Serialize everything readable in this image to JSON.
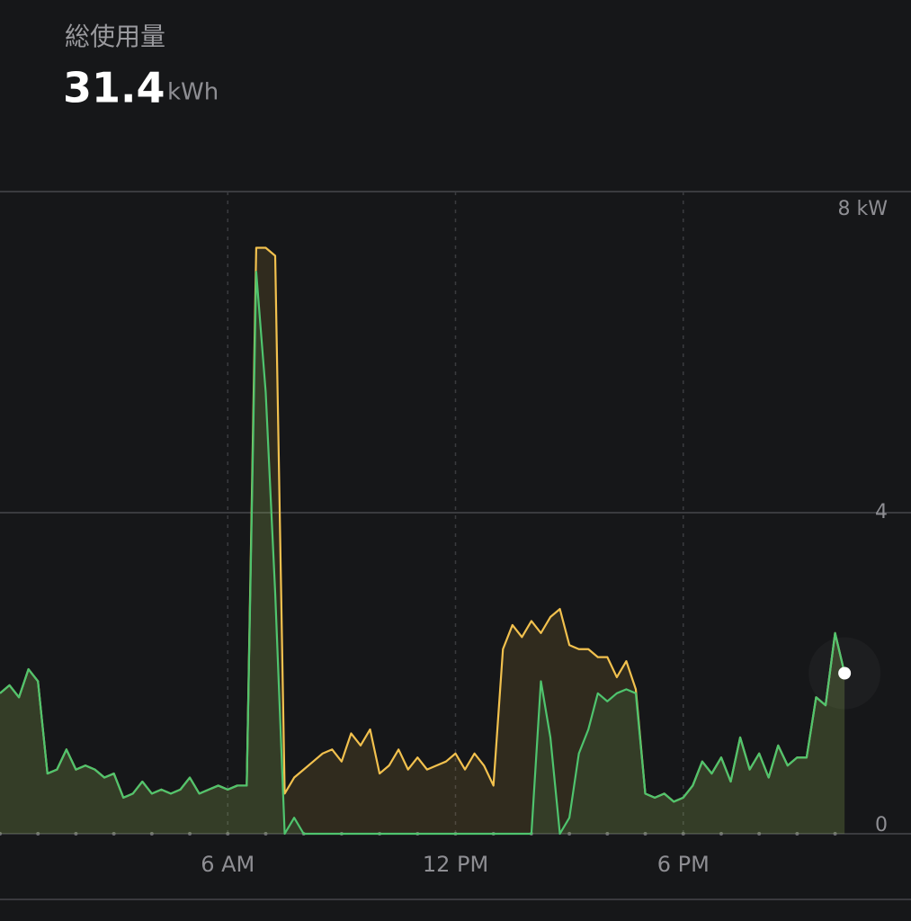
{
  "header": {
    "title": "総使用量",
    "total": "31.4",
    "unit": "kWh"
  },
  "chart_data": {
    "type": "area",
    "x": [
      0,
      0.25,
      0.5,
      0.75,
      1,
      1.25,
      1.5,
      1.75,
      2,
      2.25,
      2.5,
      2.75,
      3,
      3.25,
      3.5,
      3.75,
      4,
      4.25,
      4.5,
      4.75,
      5,
      5.25,
      5.5,
      5.75,
      6,
      6.25,
      6.5,
      6.75,
      7,
      7.25,
      7.5,
      7.75,
      8,
      8.25,
      8.5,
      8.75,
      9,
      9.25,
      9.5,
      9.75,
      10,
      10.25,
      10.5,
      10.75,
      11,
      11.25,
      11.5,
      11.75,
      12,
      12.25,
      12.5,
      12.75,
      13,
      13.25,
      13.5,
      13.75,
      14,
      14.25,
      14.5,
      14.75,
      15,
      15.25,
      15.5,
      15.75,
      16,
      16.25,
      16.5,
      16.75,
      17,
      17.25,
      17.5,
      17.75,
      18,
      18.25,
      18.5,
      18.75,
      19,
      19.25,
      19.5,
      19.75,
      20,
      20.25,
      20.5,
      20.75,
      21,
      21.25,
      21.5,
      21.75,
      22,
      22.25
    ],
    "series": [
      {
        "color": "#f2c14e",
        "values": [
          1.75,
          1.85,
          1.7,
          2.05,
          1.9,
          0.75,
          0.8,
          1.05,
          0.8,
          0.85,
          0.8,
          0.7,
          0.75,
          0.45,
          0.5,
          0.65,
          0.5,
          0.55,
          0.5,
          0.55,
          0.7,
          0.5,
          0.55,
          0.6,
          0.55,
          0.6,
          0.6,
          7.3,
          7.3,
          7.2,
          0.5,
          0.7,
          0.8,
          0.9,
          1.0,
          1.05,
          0.9,
          1.25,
          1.1,
          1.3,
          0.75,
          0.85,
          1.05,
          0.8,
          0.95,
          0.8,
          0.85,
          0.9,
          1.0,
          0.8,
          1.0,
          0.85,
          0.6,
          2.3,
          2.6,
          2.45,
          2.65,
          2.5,
          2.7,
          2.8,
          2.35,
          2.3,
          2.3,
          2.2,
          2.2,
          1.95,
          2.15,
          1.8,
          0.5,
          0.45,
          0.5,
          0.4,
          0.45,
          0.6,
          0.9,
          0.75,
          0.95,
          0.65,
          1.2,
          0.8,
          1.0,
          0.7,
          1.1,
          0.85,
          0.95,
          0.95,
          1.7,
          1.6,
          2.5,
          2.0
        ]
      },
      {
        "color": "#4fc46e",
        "values": [
          1.75,
          1.85,
          1.7,
          2.05,
          1.9,
          0.75,
          0.8,
          1.05,
          0.8,
          0.85,
          0.8,
          0.7,
          0.75,
          0.45,
          0.5,
          0.65,
          0.5,
          0.55,
          0.5,
          0.55,
          0.7,
          0.5,
          0.55,
          0.6,
          0.55,
          0.6,
          0.6,
          7.0,
          5.5,
          3.0,
          0,
          0.2,
          0,
          0,
          0,
          0,
          0,
          0,
          0,
          0,
          0,
          0,
          0,
          0,
          0,
          0,
          0,
          0,
          0,
          0,
          0,
          0,
          0,
          0,
          0,
          0,
          0,
          1.9,
          1.2,
          0,
          0.2,
          1.0,
          1.3,
          1.75,
          1.65,
          1.75,
          1.8,
          1.75,
          0.5,
          0.45,
          0.5,
          0.4,
          0.45,
          0.6,
          0.9,
          0.75,
          0.95,
          0.65,
          1.2,
          0.8,
          1.0,
          0.7,
          1.1,
          0.85,
          0.95,
          0.95,
          1.7,
          1.6,
          2.5,
          2.0
        ]
      }
    ],
    "xlim": [
      0,
      24
    ],
    "xticks": [
      {
        "value": 6,
        "label": "6 AM"
      },
      {
        "value": 12,
        "label": "12 PM"
      },
      {
        "value": 18,
        "label": "6 PM"
      }
    ],
    "xminorticks": [
      0,
      1,
      2,
      3,
      4,
      5,
      6,
      7,
      8,
      9,
      10,
      11,
      12,
      13,
      14,
      15,
      16,
      17,
      18,
      19,
      20,
      21,
      22
    ],
    "ylim": [
      0,
      8
    ],
    "yticks": [
      {
        "value": 8,
        "label": "8 kW"
      },
      4,
      0
    ],
    "grid": true
  }
}
